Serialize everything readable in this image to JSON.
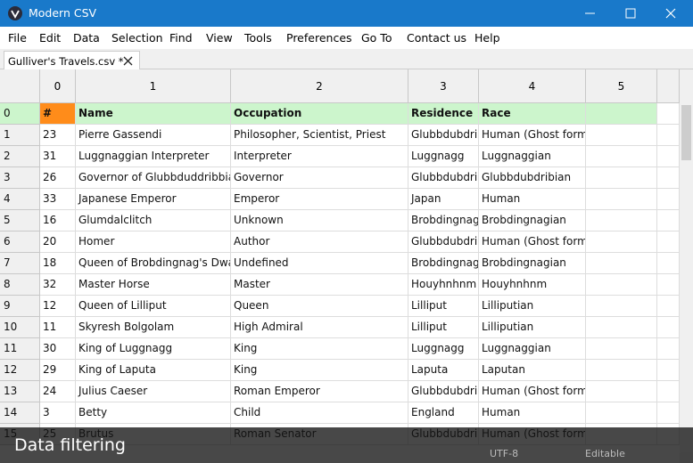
{
  "window": {
    "title": "Modern CSV"
  },
  "menu": [
    "File",
    "Edit",
    "Data",
    "Selection",
    "Find",
    "View",
    "Tools",
    "Preferences",
    "Go To",
    "Contact us",
    "Help"
  ],
  "tab": {
    "label": "Gulliver's Travels.csv *"
  },
  "table": {
    "column_headers": [
      "0",
      "1",
      "2",
      "3",
      "4",
      "5"
    ],
    "row_headers": [
      "0",
      "1",
      "2",
      "3",
      "4",
      "5",
      "6",
      "7",
      "8",
      "9",
      "10",
      "11",
      "12",
      "13",
      "14",
      "15"
    ],
    "rows": [
      [
        "#",
        "Name",
        "Occupation",
        "Residence",
        "Race"
      ],
      [
        "23",
        "Pierre Gassendi",
        "Philosopher, Scientist, Priest",
        "Glubbdubdrib",
        "Human (Ghost form)"
      ],
      [
        "31",
        "Luggnaggian Interpreter",
        "Interpreter",
        "Luggnagg",
        "Luggnaggian"
      ],
      [
        "26",
        "Governor of Glubbduddribbian",
        "Governor",
        "Glubbdubdrib",
        "Glubbdubdribian"
      ],
      [
        "33",
        "Japanese Emperor",
        "Emperor",
        "Japan",
        "Human"
      ],
      [
        "16",
        "Glumdalclitch",
        "Unknown",
        "Brobdingnag",
        "Brobdingnagian"
      ],
      [
        "20",
        "Homer",
        "Author",
        "Glubbdubdrib",
        "Human (Ghost form)"
      ],
      [
        "18",
        "Queen of Brobdingnag's Dwarf",
        "Undefined",
        "Brobdingnag",
        "Brobdingnagian"
      ],
      [
        "32",
        "Master Horse",
        "Master",
        "Houyhnhnm",
        "Houyhnhnm"
      ],
      [
        "12",
        "Queen of Lilliput",
        "Queen",
        "Lilliput",
        "Lilliputian"
      ],
      [
        "11",
        "Skyresh Bolgolam",
        "High Admiral",
        "Lilliput",
        "Lilliputian"
      ],
      [
        "30",
        "King of Luggnagg",
        "King",
        "Luggnagg",
        "Luggnaggian"
      ],
      [
        "29",
        "King of Laputa",
        "King",
        "Laputa",
        "Laputan"
      ],
      [
        "24",
        "Julius Caeser",
        "Roman Emperor",
        "Glubbdubdrib",
        "Human (Ghost form)"
      ],
      [
        "3",
        "Betty",
        "Child",
        "England",
        "Human"
      ],
      [
        "25",
        "Brutus",
        "Roman Senator",
        "Glubbdubdrib",
        "Human (Ghost form)"
      ]
    ]
  },
  "status": {
    "encoding": "UTF-8",
    "mode": "Editable"
  },
  "caption": "Data filtering"
}
